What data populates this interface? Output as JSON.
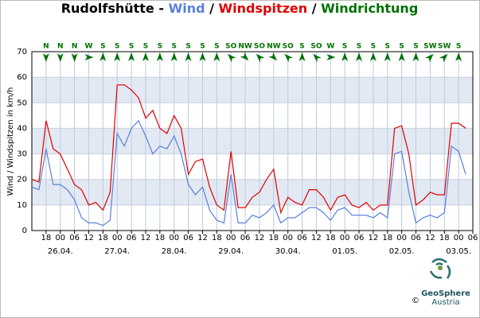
{
  "chart_data": {
    "type": "line",
    "title_prefix": "Rudolfshütte - ",
    "title_separator": " / ",
    "y_label": "Wind / Windspitzen in km/h",
    "x": [
      "25.04. 12:00",
      "25.04. 15:00",
      "25.04. 18:00",
      "25.04. 21:00",
      "26.04. 00:00",
      "26.04. 03:00",
      "26.04. 06:00",
      "26.04. 09:00",
      "26.04. 12:00",
      "26.04. 15:00",
      "26.04. 18:00",
      "26.04. 21:00",
      "27.04. 00:00",
      "27.04. 03:00",
      "27.04. 06:00",
      "27.04. 09:00",
      "27.04. 12:00",
      "27.04. 15:00",
      "27.04. 18:00",
      "27.04. 21:00",
      "28.04. 00:00",
      "28.04. 03:00",
      "28.04. 06:00",
      "28.04. 09:00",
      "28.04. 12:00",
      "28.04. 15:00",
      "28.04. 18:00",
      "28.04. 21:00",
      "29.04. 00:00",
      "29.04. 03:00",
      "29.04. 06:00",
      "29.04. 09:00",
      "29.04. 12:00",
      "29.04. 15:00",
      "29.04. 18:00",
      "29.04. 21:00",
      "30.04. 00:00",
      "30.04. 03:00",
      "30.04. 06:00",
      "30.04. 09:00",
      "30.04. 12:00",
      "30.04. 15:00",
      "30.04. 18:00",
      "30.04. 21:00",
      "01.05. 00:00",
      "01.05. 03:00",
      "01.05. 06:00",
      "01.05. 09:00",
      "01.05. 12:00",
      "01.05. 15:00",
      "01.05. 18:00",
      "01.05. 21:00",
      "02.05. 00:00",
      "02.05. 03:00",
      "02.05. 06:00",
      "02.05. 09:00",
      "02.05. 12:00",
      "02.05. 15:00",
      "02.05. 18:00",
      "02.05. 21:00",
      "03.05. 00:00",
      "03.05. 03:00"
    ],
    "series": [
      {
        "name": "Wind",
        "color": "#5a7fdc",
        "values": [
          17,
          16,
          32,
          18,
          18,
          16,
          12,
          5,
          3,
          3,
          2,
          4,
          38,
          33,
          40,
          43,
          37,
          30,
          33,
          32,
          37,
          30,
          18,
          14,
          17,
          8,
          4,
          3,
          22,
          3,
          3,
          6,
          5,
          7,
          10,
          3,
          5,
          5,
          7,
          9,
          9,
          7,
          4,
          8,
          9,
          6,
          6,
          6,
          5,
          7,
          5,
          30,
          31,
          15,
          3,
          5,
          6,
          5,
          7,
          33,
          31,
          22
        ]
      },
      {
        "name": "Windspitzen",
        "color": "#e00000",
        "values": [
          20,
          19,
          43,
          32,
          30,
          24,
          18,
          16,
          10,
          11,
          8,
          15,
          57,
          57,
          55,
          52,
          44,
          47,
          40,
          38,
          45,
          40,
          22,
          27,
          28,
          17,
          10,
          8,
          31,
          9,
          9,
          13,
          15,
          20,
          24,
          7,
          13,
          11,
          10,
          16,
          16,
          13,
          8,
          13,
          14,
          10,
          9,
          11,
          8,
          10,
          10,
          40,
          41,
          30,
          10,
          12,
          15,
          14,
          14,
          42,
          42,
          40
        ]
      }
    ],
    "direction": {
      "name": "Windrichtung",
      "color": "#007000",
      "x": [
        "25.04. 18:00",
        "26.04. 00:00",
        "26.04. 06:00",
        "26.04. 12:00",
        "26.04. 18:00",
        "27.04. 00:00",
        "27.04. 06:00",
        "27.04. 12:00",
        "27.04. 18:00",
        "28.04. 00:00",
        "28.04. 06:00",
        "28.04. 12:00",
        "28.04. 18:00",
        "29.04. 00:00",
        "29.04. 06:00",
        "29.04. 12:00",
        "29.04. 18:00",
        "30.04. 00:00",
        "30.04. 06:00",
        "30.04. 12:00",
        "30.04. 18:00",
        "01.05. 00:00",
        "01.05. 06:00",
        "01.05. 12:00",
        "01.05. 18:00",
        "02.05. 00:00",
        "02.05. 06:00",
        "02.05. 12:00",
        "02.05. 18:00",
        "03.05. 00:00"
      ],
      "values": [
        "N",
        "N",
        "N",
        "W",
        "S",
        "S",
        "S",
        "S",
        "S",
        "S",
        "S",
        "S",
        "S",
        "SO",
        "NW",
        "SO",
        "NW",
        "SO",
        "S",
        "SO",
        "W",
        "S",
        "S",
        "S",
        "S",
        "S",
        "S",
        "SW",
        "SW",
        "S"
      ]
    },
    "xlim": [
      "25.04. 12:00",
      "03.05. 06:00"
    ],
    "xticks": [
      {
        "value": "25.04. 18:00",
        "label": "18"
      },
      {
        "value": "26.04. 00:00",
        "label": "00"
      },
      {
        "value": "26.04. 06:00",
        "label": "06"
      },
      {
        "value": "26.04. 12:00",
        "label": "12"
      },
      {
        "value": "26.04. 18:00",
        "label": "18"
      },
      {
        "value": "27.04. 00:00",
        "label": "00"
      },
      {
        "value": "27.04. 06:00",
        "label": "06"
      },
      {
        "value": "27.04. 12:00",
        "label": "12"
      },
      {
        "value": "27.04. 18:00",
        "label": "18"
      },
      {
        "value": "28.04. 00:00",
        "label": "00"
      },
      {
        "value": "28.04. 06:00",
        "label": "06"
      },
      {
        "value": "28.04. 12:00",
        "label": "12"
      },
      {
        "value": "28.04. 18:00",
        "label": "18"
      },
      {
        "value": "29.04. 00:00",
        "label": "00"
      },
      {
        "value": "29.04. 06:00",
        "label": "06"
      },
      {
        "value": "29.04. 12:00",
        "label": "12"
      },
      {
        "value": "29.04. 18:00",
        "label": "18"
      },
      {
        "value": "30.04. 00:00",
        "label": "00"
      },
      {
        "value": "30.04. 06:00",
        "label": "06"
      },
      {
        "value": "30.04. 12:00",
        "label": "12"
      },
      {
        "value": "30.04. 18:00",
        "label": "18"
      },
      {
        "value": "01.05. 00:00",
        "label": "00"
      },
      {
        "value": "01.05. 06:00",
        "label": "06"
      },
      {
        "value": "01.05. 12:00",
        "label": "12"
      },
      {
        "value": "01.05. 18:00",
        "label": "18"
      },
      {
        "value": "02.05. 00:00",
        "label": "00"
      },
      {
        "value": "02.05. 06:00",
        "label": "06"
      },
      {
        "value": "02.05. 12:00",
        "label": "12"
      },
      {
        "value": "02.05. 18:00",
        "label": "18"
      },
      {
        "value": "03.05. 00:00",
        "label": "00"
      },
      {
        "value": "03.05. 06:00",
        "label": "06"
      }
    ],
    "date_ticks": [
      {
        "value": "26.04. 00:00",
        "label": "26.04."
      },
      {
        "value": "27.04. 00:00",
        "label": "27.04."
      },
      {
        "value": "28.04. 00:00",
        "label": "28.04."
      },
      {
        "value": "29.04. 00:00",
        "label": "29.04."
      },
      {
        "value": "30.04. 00:00",
        "label": "30.04."
      },
      {
        "value": "01.05. 00:00",
        "label": "01.05."
      },
      {
        "value": "02.05. 00:00",
        "label": "02.05."
      },
      {
        "value": "03.05. 00:00",
        "label": "03.05."
      }
    ],
    "ylim": [
      0,
      70
    ],
    "yticks": [
      0,
      10,
      20,
      30,
      40,
      50,
      60,
      70
    ],
    "grid": true,
    "band_color": "#e3e9f3"
  },
  "logo": {
    "name": "GeoSphere",
    "sub": "Austria",
    "copyright": "©"
  }
}
